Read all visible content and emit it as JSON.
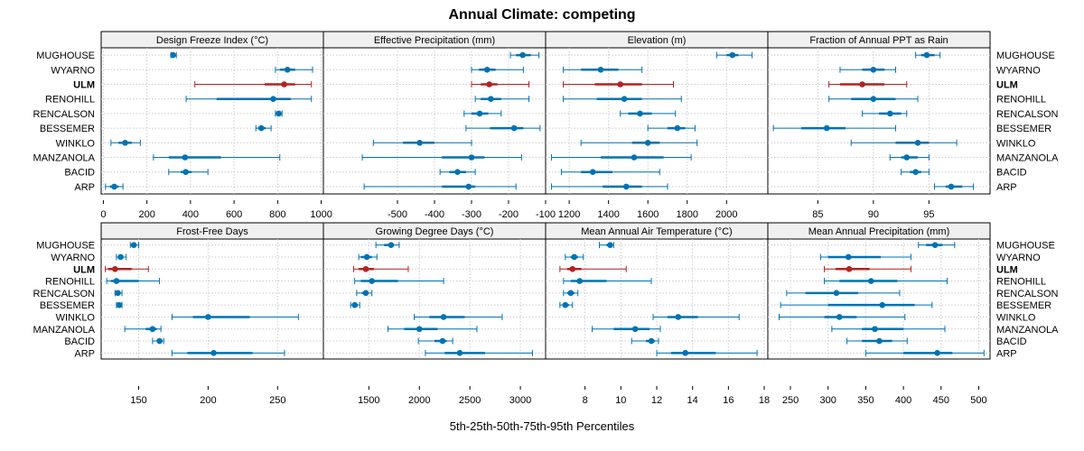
{
  "title": "Annual Climate: competing",
  "xlabel": "5th-25th-50th-75th-95th Percentiles",
  "colors": {
    "normal": "#0072B2",
    "highlight": "#B22222",
    "strip": "#f0f0f0",
    "grid": "#cccccc"
  },
  "chart_data": {
    "type": "dot-and-whisker",
    "categories": [
      "MUGHOUSE",
      "WYARNO",
      "ULM",
      "RENOHILL",
      "RENCALSON",
      "BESSEMER",
      "WINKLO",
      "MANZANOLA",
      "BACID",
      "ARP"
    ],
    "highlight": "ULM",
    "panels": [
      {
        "title": "Design Freeze Index (°C)",
        "xlim": [
          -10,
          1010
        ],
        "ticks": [
          "0",
          "200",
          "400",
          "600",
          "800",
          "1000"
        ],
        "tick_values": [
          0,
          200,
          400,
          600,
          800,
          1000
        ],
        "stats": [
          [
            310,
            315,
            320,
            325,
            335
          ],
          [
            790,
            810,
            845,
            880,
            960
          ],
          [
            420,
            740,
            830,
            880,
            955
          ],
          [
            380,
            520,
            780,
            860,
            955
          ],
          [
            790,
            795,
            805,
            815,
            820
          ],
          [
            700,
            710,
            725,
            745,
            770
          ],
          [
            35,
            70,
            100,
            130,
            170
          ],
          [
            230,
            300,
            375,
            540,
            810
          ],
          [
            300,
            355,
            378,
            405,
            480
          ],
          [
            10,
            30,
            50,
            70,
            90
          ]
        ]
      },
      {
        "title": "Effective Precipitation (mm)",
        "xlim": [
          -700,
          -100
        ],
        "ticks": [
          "-500",
          "-400",
          "-300",
          "-200",
          "-100"
        ],
        "tick_values": [
          -500,
          -400,
          -300,
          -200,
          -100
        ],
        "stats": [
          [
            -195,
            -180,
            -162,
            -140,
            -118
          ],
          [
            -300,
            -280,
            -258,
            -235,
            -160
          ],
          [
            -300,
            -275,
            -252,
            -230,
            -145
          ],
          [
            -290,
            -275,
            -248,
            -220,
            -145
          ],
          [
            -320,
            -300,
            -278,
            -255,
            -220
          ],
          [
            -315,
            -250,
            -185,
            -160,
            -115
          ],
          [
            -565,
            -485,
            -440,
            -400,
            -300
          ],
          [
            -595,
            -380,
            -300,
            -265,
            -165
          ],
          [
            -385,
            -360,
            -338,
            -315,
            -290
          ],
          [
            -590,
            -380,
            -308,
            -290,
            -180
          ]
        ]
      },
      {
        "title": "Elevation (m)",
        "xlim": [
          1080,
          2210
        ],
        "ticks": [
          "1200",
          "1400",
          "1600",
          "1800",
          "2000"
        ],
        "tick_values": [
          1200,
          1400,
          1600,
          1800,
          2000
        ],
        "stats": [
          [
            1950,
            2000,
            2030,
            2060,
            2130
          ],
          [
            1170,
            1260,
            1360,
            1450,
            1570
          ],
          [
            1170,
            1330,
            1460,
            1570,
            1730
          ],
          [
            1170,
            1340,
            1480,
            1570,
            1770
          ],
          [
            1460,
            1500,
            1560,
            1620,
            1740
          ],
          [
            1600,
            1700,
            1750,
            1790,
            1840
          ],
          [
            1260,
            1520,
            1600,
            1660,
            1850
          ],
          [
            1110,
            1360,
            1530,
            1680,
            1820
          ],
          [
            1160,
            1260,
            1320,
            1420,
            1660
          ],
          [
            1110,
            1370,
            1490,
            1570,
            1700
          ]
        ]
      },
      {
        "title": "Fraction of Annual PPT as Rain",
        "xlim": [
          80.5,
          100.5
        ],
        "ticks": [
          "85",
          "90",
          "95"
        ],
        "tick_values": [
          85,
          90,
          95
        ],
        "stats": [
          [
            93.8,
            94.3,
            94.8,
            95.5,
            96
          ],
          [
            87,
            89,
            90,
            91,
            92
          ],
          [
            86,
            87,
            89,
            91,
            93
          ],
          [
            86,
            88,
            90,
            92,
            94
          ],
          [
            89,
            90.5,
            91.5,
            92.5,
            93
          ],
          [
            81,
            83.5,
            85.8,
            87.5,
            92
          ],
          [
            88,
            92,
            94,
            95,
            97.5
          ],
          [
            91.5,
            92.5,
            93,
            94,
            95
          ],
          [
            92.5,
            93.3,
            93.8,
            94.3,
            95
          ],
          [
            95.5,
            96.5,
            97,
            98,
            99
          ]
        ]
      },
      {
        "title": "Frost-Free Days",
        "xlim": [
          123,
          283
        ],
        "ticks": [
          "150",
          "200",
          "250"
        ],
        "tick_values": [
          150,
          200,
          250
        ],
        "stats": [
          [
            144,
            145,
            146.5,
            148,
            150
          ],
          [
            134,
            135,
            137,
            139,
            141
          ],
          [
            126,
            128,
            133,
            145,
            157
          ],
          [
            127,
            130,
            134,
            150,
            165
          ],
          [
            133,
            134,
            135,
            136,
            138
          ],
          [
            134,
            135,
            136,
            137,
            138
          ],
          [
            174,
            189,
            200,
            230,
            265
          ],
          [
            140,
            155,
            160,
            163,
            166
          ],
          [
            160,
            163,
            165,
            167,
            168
          ],
          [
            174,
            185,
            204,
            232,
            255
          ]
        ]
      },
      {
        "title": "Growing Degree Days (°C)",
        "xlim": [
          1050,
          3250
        ],
        "ticks": [
          "1500",
          "2000",
          "2500",
          "3000"
        ],
        "tick_values": [
          1500,
          2000,
          2500,
          3000
        ],
        "stats": [
          [
            1570,
            1650,
            1720,
            1750,
            1800
          ],
          [
            1400,
            1420,
            1480,
            1530,
            1580
          ],
          [
            1350,
            1400,
            1470,
            1550,
            1890
          ],
          [
            1360,
            1420,
            1530,
            1790,
            2240
          ],
          [
            1380,
            1430,
            1470,
            1490,
            1530
          ],
          [
            1320,
            1340,
            1360,
            1390,
            1410
          ],
          [
            1950,
            2100,
            2240,
            2450,
            2820
          ],
          [
            1690,
            1850,
            2000,
            2180,
            2570
          ],
          [
            1990,
            2150,
            2230,
            2270,
            2330
          ],
          [
            2060,
            2250,
            2400,
            2650,
            3120
          ]
        ]
      },
      {
        "title": "Mean Annual Air Temperature (°C)",
        "xlim": [
          5.8,
          18.2
        ],
        "ticks": [
          "8",
          "10",
          "12",
          "14",
          "16",
          "18"
        ],
        "tick_values": [
          8,
          10,
          12,
          14,
          16,
          18
        ],
        "stats": [
          [
            8.8,
            9.2,
            9.4,
            9.5,
            9.6
          ],
          [
            6.9,
            7.2,
            7.4,
            7.6,
            7.9
          ],
          [
            6.6,
            7.0,
            7.3,
            7.8,
            10.3
          ],
          [
            6.8,
            7.2,
            7.7,
            9.2,
            11.7
          ],
          [
            6.8,
            7.0,
            7.2,
            7.4,
            7.6
          ],
          [
            6.6,
            6.8,
            6.9,
            7.1,
            7.3
          ],
          [
            11.8,
            12.6,
            13.2,
            14.3,
            16.6
          ],
          [
            8.4,
            9.6,
            10.8,
            11.6,
            12.2
          ],
          [
            10.6,
            11.4,
            11.7,
            11.9,
            12.1
          ],
          [
            12.0,
            12.8,
            13.6,
            15.3,
            17.6
          ]
        ]
      },
      {
        "title": "Mean Annual Precipitation (mm)",
        "xlim": [
          220,
          515
        ],
        "ticks": [
          "250",
          "300",
          "350",
          "400",
          "450",
          "500"
        ],
        "tick_values": [
          250,
          300,
          350,
          400,
          450,
          500
        ],
        "stats": [
          [
            420,
            430,
            442,
            452,
            468
          ],
          [
            290,
            300,
            327,
            370,
            410
          ],
          [
            295,
            310,
            328,
            355,
            410
          ],
          [
            295,
            315,
            357,
            392,
            458
          ],
          [
            245,
            270,
            311,
            340,
            395
          ],
          [
            237,
            300,
            372,
            415,
            438
          ],
          [
            235,
            295,
            315,
            338,
            402
          ],
          [
            305,
            345,
            362,
            400,
            455
          ],
          [
            325,
            345,
            368,
            385,
            405
          ],
          [
            350,
            400,
            445,
            465,
            507
          ]
        ]
      }
    ]
  }
}
